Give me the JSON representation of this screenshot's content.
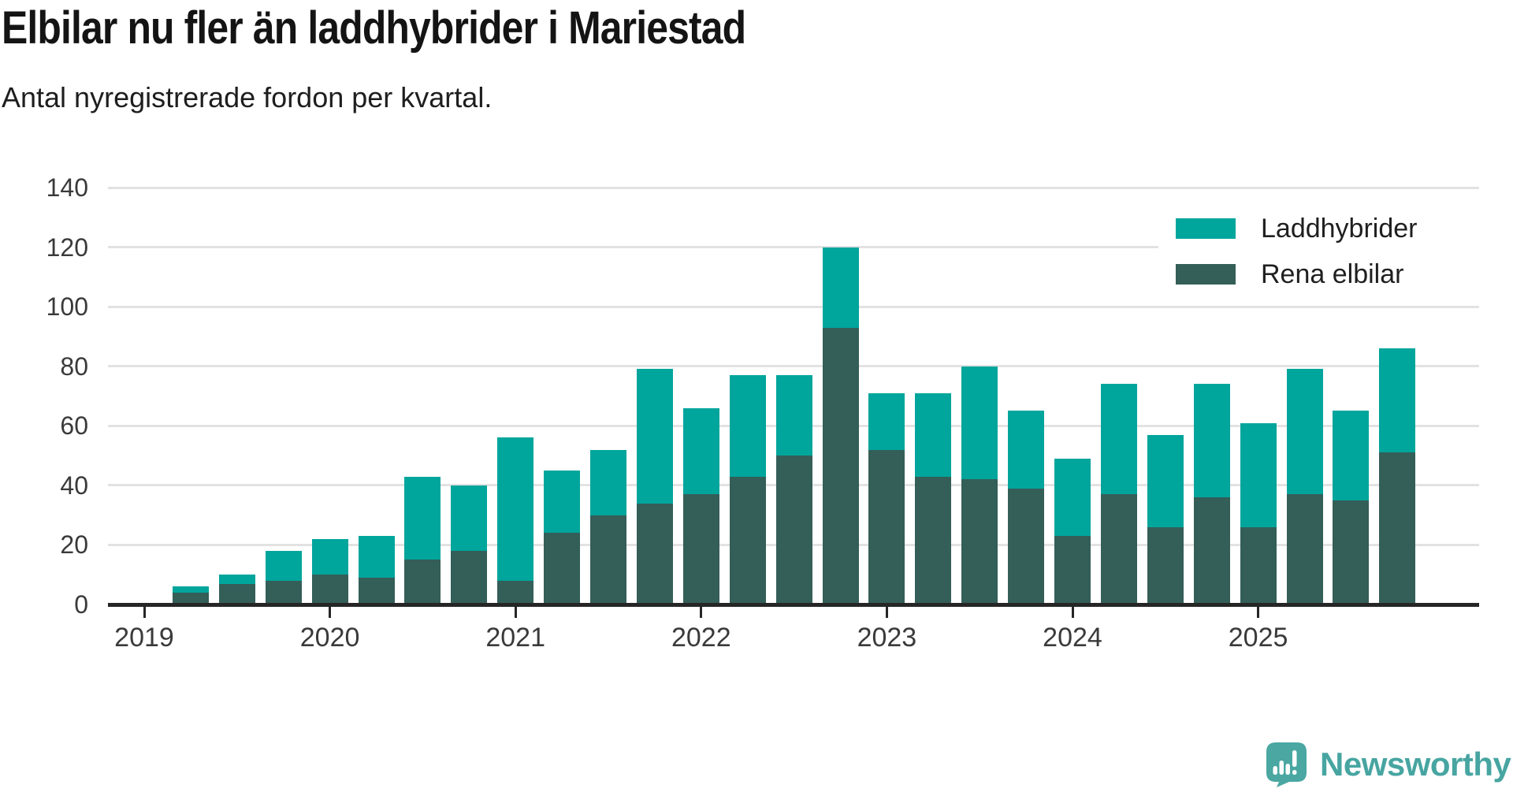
{
  "brand": {
    "name": "Newsworthy",
    "color": "#47a5a1"
  },
  "legend": {
    "items": [
      {
        "label": "Laddhybrider",
        "color": "#00a59c"
      },
      {
        "label": "Rena elbilar",
        "color": "#345e58"
      }
    ]
  },
  "axis_colors": {
    "gridline": "#e2e2e2",
    "axis_line": "#262626",
    "tick_text": "#3a3a3a"
  },
  "chart_data": {
    "type": "bar",
    "stacked": true,
    "title": "Elbilar nu fler än laddhybrider i Mariestad",
    "subtitle": "Antal nyregistrerade fordon per kvartal.",
    "categories": [
      "2019-Q2",
      "2019-Q3",
      "2019-Q4",
      "2020-Q1",
      "2020-Q2",
      "2020-Q3",
      "2020-Q4",
      "2021-Q1",
      "2021-Q2",
      "2021-Q3",
      "2021-Q4",
      "2022-Q1",
      "2022-Q2",
      "2022-Q3",
      "2022-Q4",
      "2023-Q1",
      "2023-Q2",
      "2023-Q3",
      "2023-Q4",
      "2024-Q1",
      "2024-Q2",
      "2024-Q3",
      "2024-Q4",
      "2025-Q1",
      "2025-Q2",
      "2025-Q3",
      "2025-Q4"
    ],
    "series": [
      {
        "name": "Rena elbilar",
        "color": "#345e58",
        "values": [
          4,
          7,
          8,
          10,
          9,
          15,
          18,
          8,
          24,
          30,
          34,
          37,
          43,
          50,
          93,
          52,
          43,
          42,
          39,
          23,
          37,
          26,
          36,
          26,
          37,
          35,
          51
        ]
      },
      {
        "name": "Laddhybrider",
        "color": "#00a59c",
        "values": [
          2,
          3,
          10,
          12,
          14,
          28,
          22,
          48,
          21,
          22,
          45,
          29,
          34,
          27,
          27,
          19,
          28,
          38,
          26,
          26,
          37,
          31,
          38,
          35,
          42,
          30,
          35
        ]
      }
    ],
    "totals": [
      6,
      10,
      18,
      22,
      23,
      43,
      40,
      56,
      45,
      52,
      79,
      66,
      77,
      77,
      120,
      71,
      71,
      80,
      65,
      49,
      74,
      57,
      74,
      61,
      79,
      65,
      86
    ],
    "xlabel": "",
    "ylabel": "",
    "ylim": [
      0,
      140
    ],
    "yticks": [
      0,
      20,
      40,
      60,
      80,
      100,
      120,
      140
    ],
    "year_ticks": [
      "2019",
      "2020",
      "2021",
      "2022",
      "2023",
      "2024",
      "2025"
    ],
    "grid": true,
    "legend_position": "top-right"
  }
}
